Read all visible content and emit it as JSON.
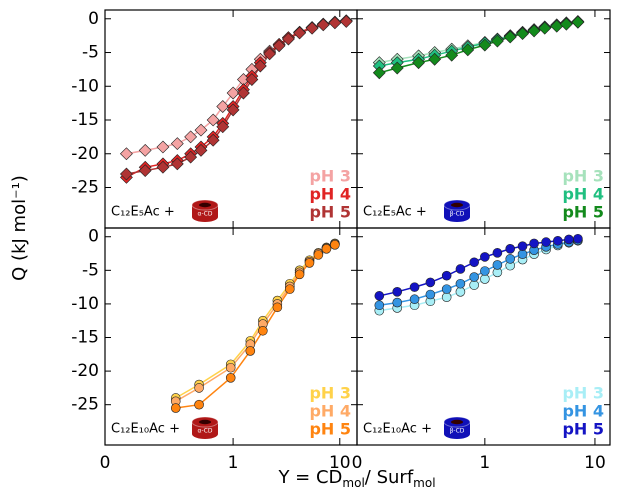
{
  "y_label": "Q  (kJ mol⁻¹)",
  "x_label": [
    "Y =  CD",
    "mol",
    "/ Surf",
    "mol"
  ],
  "chart_data": [
    {
      "type": "line",
      "marker": "diamond",
      "log_x": true,
      "label": "C₁₂E₅Ac +",
      "host": "α-CD",
      "host_color": "#b01818",
      "xlim": [
        0.063,
        14.5
      ],
      "xticks": [
        {
          "value": 0.063,
          "label": "0"
        },
        1,
        10
      ],
      "ylim": [
        -31,
        1.3
      ],
      "yticks": [
        0,
        -5,
        -10,
        -15,
        -20,
        -25
      ],
      "series": [
        {
          "name": "pH 3",
          "color": "#f4a3a3",
          "x": [
            0.1,
            0.15,
            0.22,
            0.3,
            0.4,
            0.5,
            0.65,
            0.8,
            1.0,
            1.25,
            1.5,
            1.8,
            2.2,
            2.7,
            3.3,
            4.2,
            5.5,
            7,
            9,
            11.5
          ],
          "values": [
            -20,
            -19.5,
            -19,
            -18.5,
            -17.5,
            -16.5,
            -15,
            -13,
            -11,
            -9,
            -7.5,
            -6,
            -4.8,
            -3.8,
            -2.8,
            -2,
            -1.3,
            -0.8,
            -0.5,
            -0.3
          ]
        },
        {
          "name": "pH 4",
          "color": "#e02424",
          "x": [
            0.1,
            0.15,
            0.22,
            0.3,
            0.4,
            0.5,
            0.65,
            0.8,
            1.0,
            1.25,
            1.5,
            1.8,
            2.2,
            2.7,
            3.3,
            4.2,
            5.5,
            7,
            9,
            11.5
          ],
          "values": [
            -23.5,
            -22,
            -21.5,
            -21,
            -20,
            -19,
            -17.5,
            -15.5,
            -13,
            -10.5,
            -8.5,
            -6.5,
            -5,
            -3.8,
            -2.8,
            -2,
            -1.3,
            -0.8,
            -0.5,
            -0.3
          ]
        },
        {
          "name": "pH 5",
          "color": "#b03434",
          "x": [
            0.1,
            0.15,
            0.22,
            0.3,
            0.4,
            0.5,
            0.65,
            0.8,
            1.0,
            1.25,
            1.5,
            1.8,
            2.2,
            2.7,
            3.3,
            4.2,
            5.5,
            7,
            9,
            11.5
          ],
          "values": [
            -23,
            -22.5,
            -22,
            -21.5,
            -20.5,
            -19.5,
            -18,
            -16,
            -13.5,
            -11,
            -9,
            -7,
            -5.2,
            -4,
            -3,
            -2.1,
            -1.4,
            -0.9,
            -0.6,
            -0.4
          ]
        }
      ]
    },
    {
      "type": "line",
      "marker": "diamond",
      "log_x": true,
      "label": "C₁₂E₅Ac +",
      "host": "β-CD",
      "host_color": "#1010b8",
      "xlim": [
        0.069,
        13.7
      ],
      "xticks": [
        {
          "value": 0.069,
          "label": "0"
        },
        1,
        10
      ],
      "ylim": [
        -31,
        1.3
      ],
      "yticks": [
        0,
        -5,
        -10,
        -15,
        -20,
        -25
      ],
      "series": [
        {
          "name": "pH 3",
          "color": "#a6e2bc",
          "x": [
            0.11,
            0.16,
            0.25,
            0.35,
            0.5,
            0.7,
            1.0,
            1.3,
            1.7,
            2.2,
            2.8,
            3.5,
            4.5,
            5.5,
            7
          ],
          "values": [
            -6.5,
            -6,
            -5.5,
            -5,
            -4.5,
            -4,
            -3.5,
            -3,
            -2.5,
            -2,
            -1.6,
            -1.2,
            -0.9,
            -0.6,
            -0.4
          ]
        },
        {
          "name": "pH 4",
          "color": "#1fbf80",
          "x": [
            0.11,
            0.16,
            0.25,
            0.35,
            0.5,
            0.7,
            1.0,
            1.3,
            1.7,
            2.2,
            2.8,
            3.5,
            4.5,
            5.5,
            7
          ],
          "values": [
            -7,
            -6.5,
            -6,
            -5.4,
            -4.8,
            -4.2,
            -3.6,
            -3.1,
            -2.6,
            -2.1,
            -1.7,
            -1.3,
            -1,
            -0.7,
            -0.5
          ]
        },
        {
          "name": "pH 5",
          "color": "#138a1c",
          "x": [
            0.11,
            0.16,
            0.25,
            0.35,
            0.5,
            0.7,
            1.0,
            1.3,
            1.7,
            2.2,
            2.8,
            3.5,
            4.5,
            5.5,
            7
          ],
          "values": [
            -8,
            -7.3,
            -6.5,
            -6,
            -5.4,
            -4.6,
            -3.9,
            -3.3,
            -2.7,
            -2.2,
            -1.8,
            -1.4,
            -1.1,
            -0.8,
            -0.5
          ]
        }
      ]
    },
    {
      "type": "line",
      "marker": "circle",
      "log_x": true,
      "label": "C₁₂E₁₀Ac +",
      "host": "α-CD",
      "host_color": "#b01818",
      "xlim": [
        0.063,
        14.5
      ],
      "xticks": [
        {
          "value": 0.063,
          "label": "0"
        },
        1,
        10
      ],
      "ylim": [
        -31,
        1.3
      ],
      "yticks": [
        0,
        -5,
        -10,
        -15,
        -20,
        -25
      ],
      "series": [
        {
          "name": "pH 3",
          "color": "#ffd24a",
          "x": [
            0.29,
            0.48,
            0.95,
            1.45,
            1.9,
            2.6,
            3.4,
            4.2,
            5.2,
            6.3,
            7.5,
            9
          ],
          "values": [
            -24,
            -22,
            -19,
            -15.5,
            -12.5,
            -9.5,
            -7,
            -5,
            -3.5,
            -2.4,
            -1.6,
            -1
          ]
        },
        {
          "name": "pH 4",
          "color": "#ffaa66",
          "x": [
            0.29,
            0.48,
            0.95,
            1.45,
            1.9,
            2.6,
            3.4,
            4.2,
            5.2,
            6.3,
            7.5,
            9
          ],
          "values": [
            -24.5,
            -22.5,
            -19.5,
            -16,
            -13,
            -10,
            -7.4,
            -5.3,
            -3.7,
            -2.5,
            -1.7,
            -1.1
          ]
        },
        {
          "name": "pH 5",
          "color": "#ff8410",
          "x": [
            0.29,
            0.48,
            0.95,
            1.45,
            1.9,
            2.6,
            3.4,
            4.2,
            5.2,
            6.3,
            7.5,
            9
          ],
          "values": [
            -25.5,
            -25,
            -21,
            -17,
            -14,
            -10.5,
            -7.8,
            -5.6,
            -3.9,
            -2.7,
            -1.8,
            -1.2
          ]
        }
      ]
    },
    {
      "type": "line",
      "marker": "circle",
      "log_x": true,
      "label": "C₁₂E₁₀Ac +",
      "host": "β-CD",
      "host_color": "#1010b8",
      "xlim": [
        0.069,
        13.7
      ],
      "xticks": [
        {
          "value": 0.069,
          "label": "0"
        },
        1,
        10
      ],
      "ylim": [
        -31,
        1.3
      ],
      "yticks": [
        0,
        -5,
        -10,
        -15,
        -20,
        -25
      ],
      "series": [
        {
          "name": "pH 3",
          "color": "#a8eef6",
          "x": [
            0.11,
            0.16,
            0.23,
            0.32,
            0.45,
            0.6,
            0.8,
            1.0,
            1.3,
            1.7,
            2.2,
            2.8,
            3.6,
            4.6,
            5.8,
            7
          ],
          "values": [
            -11,
            -10.6,
            -10.2,
            -9.6,
            -9,
            -8.2,
            -7.2,
            -6.3,
            -5.3,
            -4.3,
            -3.4,
            -2.6,
            -1.9,
            -1.3,
            -0.9,
            -0.6
          ]
        },
        {
          "name": "pH 4",
          "color": "#3494e2",
          "x": [
            0.11,
            0.16,
            0.23,
            0.32,
            0.45,
            0.6,
            0.8,
            1.0,
            1.3,
            1.7,
            2.2,
            2.8,
            3.6,
            4.6,
            5.8,
            7
          ],
          "values": [
            -10.2,
            -9.8,
            -9.3,
            -8.6,
            -7.8,
            -7,
            -6,
            -5.1,
            -4.2,
            -3.3,
            -2.6,
            -2,
            -1.5,
            -1.1,
            -0.8,
            -0.5
          ]
        },
        {
          "name": "pH 5",
          "color": "#1414c4",
          "x": [
            0.11,
            0.16,
            0.23,
            0.32,
            0.45,
            0.6,
            0.8,
            1.0,
            1.3,
            1.7,
            2.2,
            2.8,
            3.6,
            4.6,
            5.8,
            7
          ],
          "values": [
            -8.8,
            -8.2,
            -7.5,
            -6.8,
            -5.8,
            -4.8,
            -3.8,
            -3,
            -2.4,
            -1.8,
            -1.4,
            -1,
            -0.8,
            -0.6,
            -0.4,
            -0.3
          ]
        }
      ]
    }
  ]
}
